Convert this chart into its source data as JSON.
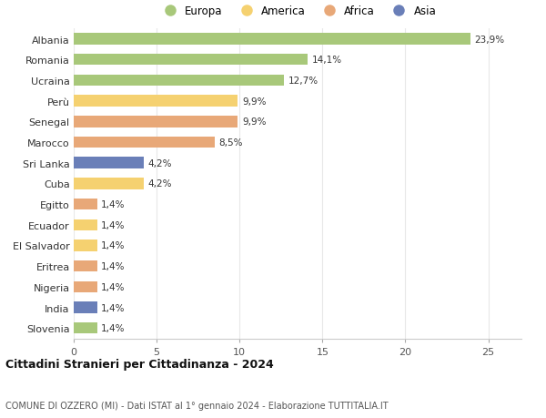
{
  "countries": [
    "Albania",
    "Romania",
    "Ucraina",
    "Perù",
    "Senegal",
    "Marocco",
    "Sri Lanka",
    "Cuba",
    "Egitto",
    "Ecuador",
    "El Salvador",
    "Eritrea",
    "Nigeria",
    "India",
    "Slovenia"
  ],
  "values": [
    23.9,
    14.1,
    12.7,
    9.9,
    9.9,
    8.5,
    4.2,
    4.2,
    1.4,
    1.4,
    1.4,
    1.4,
    1.4,
    1.4,
    1.4
  ],
  "labels": [
    "23,9%",
    "14,1%",
    "12,7%",
    "9,9%",
    "9,9%",
    "8,5%",
    "4,2%",
    "4,2%",
    "1,4%",
    "1,4%",
    "1,4%",
    "1,4%",
    "1,4%",
    "1,4%",
    "1,4%"
  ],
  "colors": [
    "#a8c87a",
    "#a8c87a",
    "#a8c87a",
    "#f5d170",
    "#e8a878",
    "#e8a878",
    "#6a7fb8",
    "#f5d170",
    "#e8a878",
    "#f5d170",
    "#f5d170",
    "#e8a878",
    "#e8a878",
    "#6a7fb8",
    "#a8c87a"
  ],
  "continent_colors": {
    "Europa": "#a8c87a",
    "America": "#f5d170",
    "Africa": "#e8a878",
    "Asia": "#6a7fb8"
  },
  "title": "Cittadini Stranieri per Cittadinanza - 2024",
  "subtitle": "COMUNE DI OZZERO (MI) - Dati ISTAT al 1° gennaio 2024 - Elaborazione TUTTITALIA.IT",
  "xlim": [
    0,
    27
  ],
  "xticks": [
    0,
    5,
    10,
    15,
    20,
    25
  ],
  "background_color": "#ffffff",
  "grid_color": "#e8e8e8"
}
